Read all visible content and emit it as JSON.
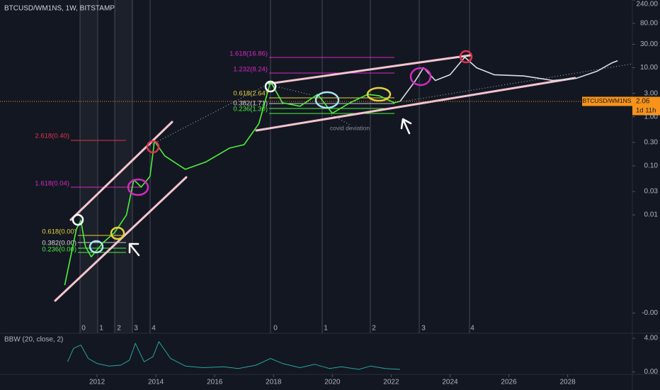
{
  "chart_data": [
    {
      "type": "line",
      "title": "BTCUSD/WM1NS, 1W, BITSTAMP",
      "log_scale": true,
      "grid": false,
      "xlim": [
        2008.7,
        2030.2
      ],
      "xticks": [
        2012,
        2014,
        2016,
        2018,
        2020,
        2022,
        2024,
        2026,
        2028
      ],
      "ylim": [
        3.87e-05,
        240
      ],
      "yticks": [
        {
          "value": 240,
          "label": "240.00"
        },
        {
          "value": 80,
          "label": "80.00"
        },
        {
          "value": 30,
          "label": "30.00"
        },
        {
          "value": 10,
          "label": "10.00"
        },
        {
          "value": 3,
          "label": "3.00"
        },
        {
          "value": 1,
          "label": "1.00"
        },
        {
          "value": 0.3,
          "label": "0.30"
        },
        {
          "value": 0.1,
          "label": "0.10"
        },
        0.03,
        0.01,
        {
          "value": 0.0001,
          "label": "-0.00"
        }
      ],
      "series": [
        {
          "color": "#4cf03c",
          "x": [
            2010.9,
            2011.3,
            2011.45,
            2011.6,
            2011.8,
            2012.2,
            2012.6,
            2013.0,
            2013.25,
            2013.5,
            2013.8,
            2013.95,
            2014.3,
            2015.0,
            2015.7,
            2016.5,
            2017.0,
            2017.5,
            2017.9,
            2018.3,
            2018.9,
            2019.5,
            2020.0,
            2020.6,
            2021.2,
            2021.6,
            2022.1,
            2022.3
          ],
          "values": [
            0.00037,
            0.0052,
            0.0077,
            0.0023,
            0.0014,
            0.0027,
            0.0044,
            0.01,
            0.052,
            0.037,
            0.061,
            0.32,
            0.16,
            0.085,
            0.12,
            0.23,
            0.27,
            0.72,
            5.2,
            1.93,
            1.64,
            2.86,
            1.18,
            1.93,
            2.86,
            2.68,
            1.93,
            2.06
          ]
        },
        {
          "color": "#dcdce4",
          "x": [
            2022.3,
            2022.8,
            2023.1,
            2023.5,
            2024.0,
            2024.5,
            2024.9,
            2025.5,
            2026.5,
            2027.5,
            2028.3,
            2029.0,
            2029.5,
            2029.7
          ],
          "values": [
            2.06,
            5.2,
            10,
            5.5,
            7.2,
            16.4,
            10,
            7.2,
            6.8,
            5.5,
            6.1,
            8.5,
            12.5,
            13.9
          ]
        }
      ],
      "last_price": 2.06,
      "symbol_label": "BTCUSD/WM1NS",
      "countdown": "1d 11h",
      "annotations": [
        "2.618(0.40)",
        "1.618(0.04)",
        "0.618(0.00)",
        "0.382(0.00)",
        "0.236(0.00)",
        "1.618(16.86)",
        "1.232(8.24)",
        "0.618(2.64)",
        "0.382(1.71)",
        "0.236(1.30)",
        "covid deviation"
      ],
      "cycle_labels": [
        "0",
        "1",
        "2",
        "3",
        "4",
        "0",
        "1",
        "2",
        "3",
        "4"
      ]
    },
    {
      "type": "line",
      "title": "BBW (20, close, 2)",
      "xlim": [
        2008.7,
        2030.2
      ],
      "ylim": [
        -0.3,
        4.6
      ],
      "yticks": [
        {
          "value": 4,
          "label": "4.00"
        },
        {
          "value": 0,
          "label": "0.00"
        }
      ],
      "series": [
        {
          "color": "#26a69a",
          "x": [
            2011.0,
            2011.2,
            2011.45,
            2011.7,
            2012.0,
            2012.4,
            2012.8,
            2013.1,
            2013.3,
            2013.6,
            2013.9,
            2014.1,
            2014.5,
            2015.0,
            2015.6,
            2016.3,
            2016.8,
            2017.4,
            2017.9,
            2018.3,
            2018.9,
            2019.4,
            2019.9,
            2020.3,
            2020.9,
            2021.3,
            2021.8,
            2022.3
          ],
          "values": [
            1.2,
            2.8,
            3.2,
            1.6,
            1.0,
            0.7,
            0.8,
            1.4,
            3.4,
            1.2,
            1.8,
            3.6,
            1.6,
            0.7,
            0.5,
            0.6,
            0.4,
            0.8,
            1.6,
            1.0,
            0.5,
            0.9,
            0.4,
            0.6,
            0.3,
            0.7,
            0.4,
            0.3
          ]
        }
      ]
    }
  ]
}
